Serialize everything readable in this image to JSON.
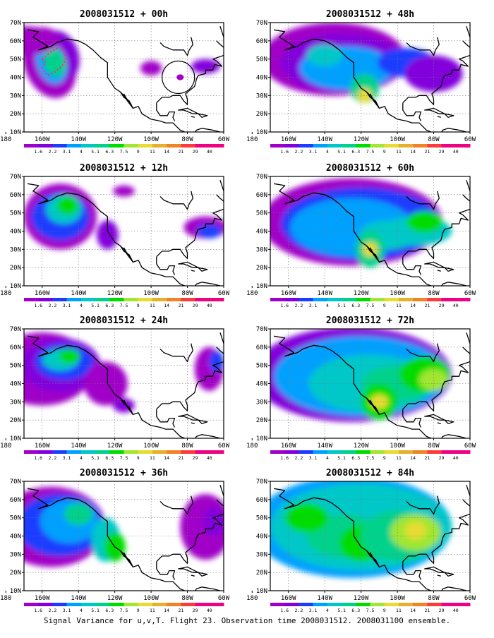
{
  "figure": {
    "caption": "Signal Variance for u,v,T. Flight 23. Observation time 2008031512. 2008031100 ensemble."
  },
  "axes": {
    "x_tick_labels": [
      "180",
      "160W",
      "140W",
      "120W",
      "100W",
      "80W",
      "60W"
    ],
    "y_tick_labels": [
      "10N",
      "20N",
      "30N",
      "40N",
      "50N",
      "60N",
      "70N"
    ]
  },
  "colorbar": {
    "labels": [
      "1.6",
      "2.2",
      "3.1",
      "4",
      "5.1",
      "6.3",
      "7.5",
      "9",
      "11",
      "14",
      "21",
      "29",
      "40"
    ],
    "colors": [
      "#a000c8",
      "#8200dc",
      "#1e3cff",
      "#00a0ff",
      "#00c8c8",
      "#00d28c",
      "#00dc00",
      "#a0e632",
      "#e6dc32",
      "#e6af2d",
      "#f08228",
      "#fa3c3c",
      "#f00082"
    ]
  },
  "panels": [
    {
      "title": "2008031512 + 00h",
      "has_flight_track": true,
      "has_circle": true,
      "coverage": "low"
    },
    {
      "title": "2008031512 + 12h",
      "coverage": "low"
    },
    {
      "title": "2008031512 + 24h",
      "coverage": "medium"
    },
    {
      "title": "2008031512 + 36h",
      "coverage": "medium"
    },
    {
      "title": "2008031512 + 48h",
      "coverage": "medium"
    },
    {
      "title": "2008031512 + 60h",
      "coverage": "high"
    },
    {
      "title": "2008031512 + 72h",
      "coverage": "high"
    },
    {
      "title": "2008031512 + 84h",
      "coverage": "high"
    }
  ]
}
